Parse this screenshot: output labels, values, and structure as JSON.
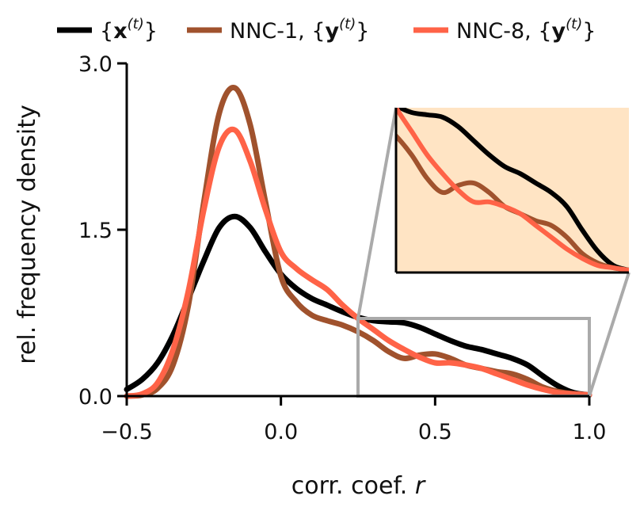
{
  "chart_data": {
    "type": "line",
    "xlabel": "corr. coef.",
    "xlabel_var": "r",
    "ylabel": "rel. frequency density",
    "xlim": [
      -0.5,
      1.0
    ],
    "ylim": [
      0.0,
      3.0
    ],
    "xticks": [
      -0.5,
      0.0,
      0.5,
      1.0
    ],
    "xtick_labels": [
      "−0.5",
      "0.0",
      "0.5",
      "1.0"
    ],
    "yticks": [
      0.0,
      1.5,
      3.0
    ],
    "ytick_labels": [
      "0.0",
      "1.5",
      "3.0"
    ],
    "grid": false,
    "legend_position": "top",
    "series": [
      {
        "name": "{x(t)}",
        "label_base": "x",
        "label_prefix": "",
        "color": "#000000",
        "x": [
          -0.5,
          -0.45,
          -0.4,
          -0.35,
          -0.3,
          -0.25,
          -0.2,
          -0.15,
          -0.1,
          -0.05,
          0.0,
          0.05,
          0.1,
          0.15,
          0.2,
          0.25,
          0.3,
          0.35,
          0.4,
          0.45,
          0.5,
          0.55,
          0.6,
          0.65,
          0.7,
          0.75,
          0.8,
          0.85,
          0.9,
          0.95,
          1.0
        ],
        "values": [
          0.06,
          0.15,
          0.3,
          0.55,
          0.88,
          1.22,
          1.52,
          1.62,
          1.52,
          1.3,
          1.1,
          0.97,
          0.88,
          0.82,
          0.76,
          0.71,
          0.68,
          0.67,
          0.66,
          0.62,
          0.56,
          0.5,
          0.45,
          0.42,
          0.38,
          0.34,
          0.28,
          0.18,
          0.09,
          0.03,
          0.01
        ]
      },
      {
        "name": "NNC-1, {y(t)}",
        "label_base": "y",
        "label_prefix": "NNC-1, ",
        "color": "#A0522D",
        "x": [
          -0.5,
          -0.45,
          -0.4,
          -0.35,
          -0.3,
          -0.25,
          -0.2,
          -0.15,
          -0.1,
          -0.05,
          0.0,
          0.05,
          0.1,
          0.15,
          0.2,
          0.25,
          0.3,
          0.35,
          0.4,
          0.45,
          0.5,
          0.55,
          0.6,
          0.65,
          0.7,
          0.75,
          0.8,
          0.85,
          0.9,
          0.95,
          1.0
        ],
        "values": [
          0.0,
          0.01,
          0.07,
          0.28,
          0.82,
          1.75,
          2.55,
          2.78,
          2.45,
          1.75,
          1.08,
          0.85,
          0.73,
          0.68,
          0.64,
          0.58,
          0.5,
          0.4,
          0.34,
          0.37,
          0.38,
          0.34,
          0.28,
          0.25,
          0.22,
          0.2,
          0.15,
          0.08,
          0.04,
          0.02,
          0.01
        ]
      },
      {
        "name": "NNC-8, {y(t)}",
        "label_base": "y",
        "label_prefix": "NNC-8, ",
        "color": "#FF6347",
        "x": [
          -0.5,
          -0.45,
          -0.4,
          -0.35,
          -0.3,
          -0.25,
          -0.2,
          -0.15,
          -0.1,
          -0.05,
          0.0,
          0.05,
          0.1,
          0.15,
          0.2,
          0.25,
          0.3,
          0.35,
          0.4,
          0.45,
          0.5,
          0.55,
          0.6,
          0.65,
          0.7,
          0.75,
          0.8,
          0.85,
          0.9,
          0.95,
          1.0
        ],
        "values": [
          0.0,
          0.02,
          0.12,
          0.42,
          0.95,
          1.68,
          2.25,
          2.4,
          2.12,
          1.68,
          1.3,
          1.15,
          1.05,
          0.96,
          0.82,
          0.7,
          0.6,
          0.5,
          0.42,
          0.35,
          0.3,
          0.3,
          0.28,
          0.25,
          0.2,
          0.15,
          0.1,
          0.06,
          0.03,
          0.02,
          0.01
        ]
      }
    ],
    "inset": {
      "xlim": [
        0.25,
        1.0
      ],
      "ylim": [
        0.0,
        0.7
      ],
      "background": "#FFE4C4",
      "box_color": "#AAAAAA"
    }
  }
}
